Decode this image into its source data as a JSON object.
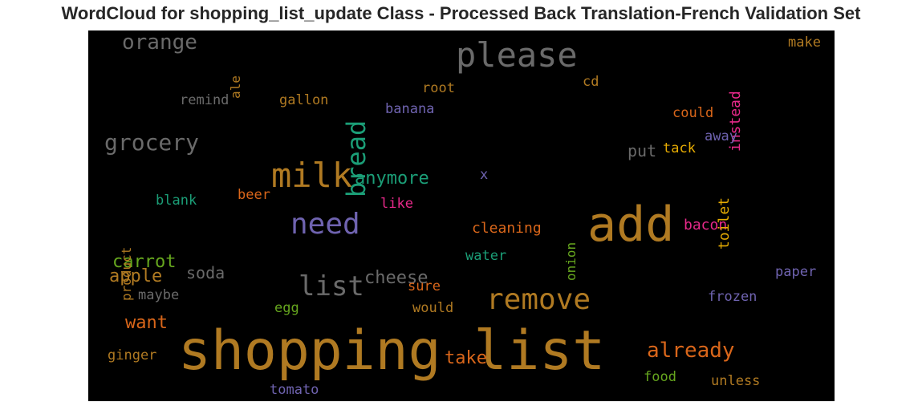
{
  "title": "WordCloud for shopping_list_update Class - Processed Back Translation-French Validation Set",
  "words": [
    {
      "text": "shopping list",
      "color": "#b07a22"
    },
    {
      "text": "add",
      "color": "#b07a22"
    },
    {
      "text": "please",
      "color": "#6a6a6a"
    },
    {
      "text": "milk",
      "color": "#b07a22"
    },
    {
      "text": "need",
      "color": "#6f63b0"
    },
    {
      "text": "remove",
      "color": "#b07a22"
    },
    {
      "text": "list",
      "color": "#6a6a6a"
    },
    {
      "text": "bread",
      "color": "#1b9e77"
    },
    {
      "text": "grocery",
      "color": "#6a6a6a"
    },
    {
      "text": "orange",
      "color": "#6a6a6a"
    },
    {
      "text": "already",
      "color": "#d9661a"
    },
    {
      "text": "anymore",
      "color": "#1b9e77"
    },
    {
      "text": "cheese",
      "color": "#6a6a6a"
    },
    {
      "text": "carrot",
      "color": "#66a61e"
    },
    {
      "text": "apple",
      "color": "#b07a22"
    },
    {
      "text": "want",
      "color": "#d9661a"
    },
    {
      "text": "take",
      "color": "#d9661a"
    },
    {
      "text": "soda",
      "color": "#6a6a6a"
    },
    {
      "text": "put",
      "color": "#6a6a6a"
    },
    {
      "text": "cleaning",
      "color": "#d9661a"
    },
    {
      "text": "bacon",
      "color": "#e7298a"
    },
    {
      "text": "instead",
      "color": "#e7298a"
    },
    {
      "text": "toilet",
      "color": "#e6ab02"
    },
    {
      "text": "onion",
      "color": "#66a61e"
    },
    {
      "text": "product",
      "color": "#b07a22"
    },
    {
      "text": "ale",
      "color": "#b07a22"
    },
    {
      "text": "remind",
      "color": "#6a6a6a"
    },
    {
      "text": "gallon",
      "color": "#b07a22"
    },
    {
      "text": "root",
      "color": "#b07a22"
    },
    {
      "text": "banana",
      "color": "#6f63b0"
    },
    {
      "text": "cd",
      "color": "#b07a22"
    },
    {
      "text": "could",
      "color": "#d9661a"
    },
    {
      "text": "make",
      "color": "#b07a22"
    },
    {
      "text": "tack",
      "color": "#e6ab02"
    },
    {
      "text": "away",
      "color": "#6f63b0"
    },
    {
      "text": "x",
      "color": "#6f63b0"
    },
    {
      "text": "blank",
      "color": "#1b9e77"
    },
    {
      "text": "beer",
      "color": "#d9661a"
    },
    {
      "text": "like",
      "color": "#e7298a"
    },
    {
      "text": "water",
      "color": "#1b9e77"
    },
    {
      "text": "paper",
      "color": "#6f63b0"
    },
    {
      "text": "maybe",
      "color": "#6a6a6a"
    },
    {
      "text": "sure",
      "color": "#d9661a"
    },
    {
      "text": "egg",
      "color": "#66a61e"
    },
    {
      "text": "would",
      "color": "#b07a22"
    },
    {
      "text": "frozen",
      "color": "#6f63b0"
    },
    {
      "text": "ginger",
      "color": "#b07a22"
    },
    {
      "text": "food",
      "color": "#66a61e"
    },
    {
      "text": "unless",
      "color": "#b07a22"
    },
    {
      "text": "tomato",
      "color": "#6f63b0"
    }
  ]
}
